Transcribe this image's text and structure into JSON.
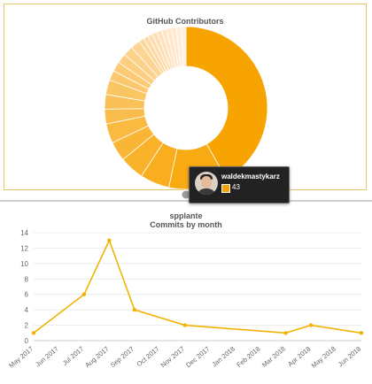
{
  "top_chart": {
    "title": "GitHub Contributors",
    "tooltip": {
      "name": "waldekmastykarz",
      "value": "43"
    },
    "chart_data": {
      "type": "pie",
      "style": "donut",
      "title": "GitHub Contributors",
      "values": [
        43,
        12,
        6,
        5,
        4,
        4,
        3,
        3,
        3,
        2,
        2,
        2,
        2,
        2,
        1,
        1,
        1,
        1,
        1,
        1,
        1,
        1,
        1,
        1
      ],
      "colors": [
        "#f7a400",
        "#f8aa12",
        "#f8ae1e",
        "#f9b22a",
        "#f9b636",
        "#f9ba42",
        "#fabd4d",
        "#fac158",
        "#fac563",
        "#fbc86d",
        "#fbcb77",
        "#fbce81",
        "#fcd18a",
        "#fcd493",
        "#fcd79c",
        "#fddaa5",
        "#fddcad",
        "#fddfb5",
        "#fde2bd",
        "#fee5c5",
        "#fee7cc",
        "#feead3",
        "#feeddb",
        "#fff0e2"
      ]
    }
  },
  "bottom_chart": {
    "title": "spplante",
    "subtitle": "Commits by month",
    "chart_data": {
      "type": "line",
      "title": "spplante",
      "subtitle": "Commits by month",
      "x": [
        "May 2017",
        "Jun 2017",
        "Jul 2017",
        "Aug 2017",
        "Sep 2017",
        "Oct 2017",
        "Nov 2017",
        "Dec 2017",
        "Jan 2018",
        "Feb 2018",
        "Mar 2018",
        "Apr 2018",
        "May 2018",
        "Jun 2018"
      ],
      "values": [
        1,
        null,
        6,
        13,
        4,
        null,
        2,
        null,
        null,
        null,
        1,
        2,
        null,
        1
      ],
      "ylim": [
        0,
        14
      ],
      "yticks": [
        0,
        2,
        4,
        6,
        8,
        10,
        12,
        14
      ],
      "grid": true,
      "color": "#f0b400"
    }
  }
}
